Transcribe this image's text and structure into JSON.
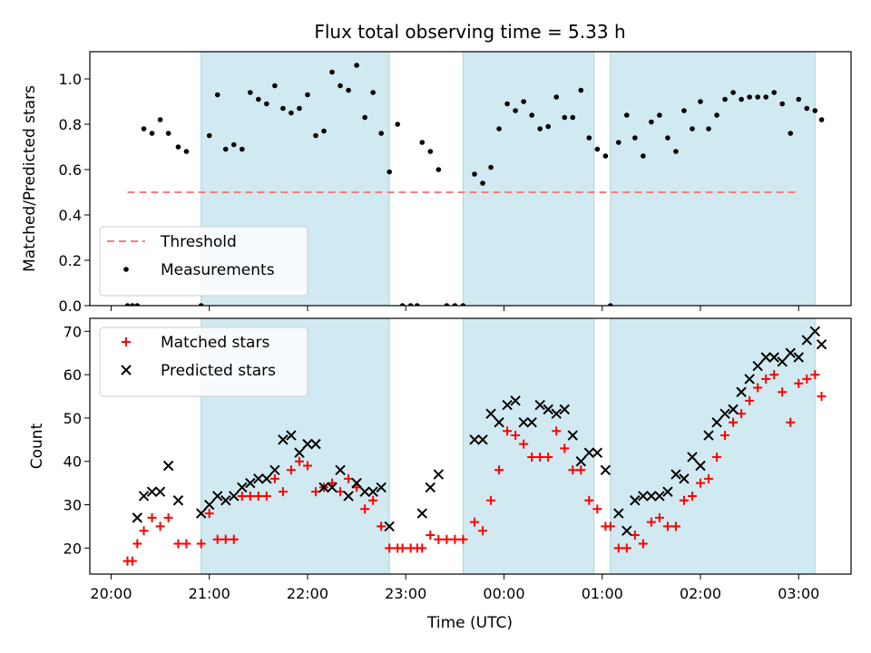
{
  "chart_data": [
    {
      "type": "scatter",
      "title": "Flux total observing time = 5.33 h",
      "xlabel": "",
      "ylabel": "Matched/Predicted stars",
      "ylim": [
        0,
        1.12
      ],
      "y_ticks": [
        "0.0",
        "0.2",
        "0.4",
        "0.6",
        "0.8",
        "1.0"
      ],
      "legend_placement": "lower-left",
      "threshold": {
        "name": "Threshold",
        "value": 0.5,
        "x_start": "20:10",
        "x_end": "03:00",
        "color": "#f08080"
      },
      "series": [
        {
          "name": "Measurements",
          "color": "#000000",
          "points": [
            [
              "20:10",
              0.0
            ],
            [
              "20:13",
              0.0
            ],
            [
              "20:16",
              0.0
            ],
            [
              "20:20",
              0.78
            ],
            [
              "20:25",
              0.76
            ],
            [
              "20:30",
              0.82
            ],
            [
              "20:35",
              0.76
            ],
            [
              "20:41",
              0.7
            ],
            [
              "20:46",
              0.68
            ],
            [
              "20:55",
              0.0
            ],
            [
              "21:00",
              0.75
            ],
            [
              "21:05",
              0.93
            ],
            [
              "21:10",
              0.69
            ],
            [
              "21:15",
              0.71
            ],
            [
              "21:20",
              0.69
            ],
            [
              "21:25",
              0.94
            ],
            [
              "21:30",
              0.91
            ],
            [
              "21:35",
              0.89
            ],
            [
              "21:40",
              0.97
            ],
            [
              "21:45",
              0.87
            ],
            [
              "21:50",
              0.85
            ],
            [
              "21:55",
              0.87
            ],
            [
              "22:00",
              0.93
            ],
            [
              "22:05",
              0.75
            ],
            [
              "22:10",
              0.77
            ],
            [
              "22:15",
              1.03
            ],
            [
              "22:20",
              0.97
            ],
            [
              "22:25",
              0.95
            ],
            [
              "22:30",
              1.06
            ],
            [
              "22:35",
              0.83
            ],
            [
              "22:40",
              0.94
            ],
            [
              "22:45",
              0.76
            ],
            [
              "22:50",
              0.59
            ],
            [
              "22:55",
              0.8
            ],
            [
              "22:58",
              0.0
            ],
            [
              "23:03",
              0.0
            ],
            [
              "23:07",
              0.0
            ],
            [
              "23:10",
              0.72
            ],
            [
              "23:15",
              0.68
            ],
            [
              "23:20",
              0.6
            ],
            [
              "23:25",
              0.0
            ],
            [
              "23:30",
              0.0
            ],
            [
              "23:35",
              0.0
            ],
            [
              "23:42",
              0.58
            ],
            [
              "23:47",
              0.54
            ],
            [
              "23:52",
              0.61
            ],
            [
              "23:57",
              0.78
            ],
            [
              "00:02",
              0.89
            ],
            [
              "00:07",
              0.86
            ],
            [
              "00:12",
              0.9
            ],
            [
              "00:17",
              0.84
            ],
            [
              "00:22",
              0.78
            ],
            [
              "00:27",
              0.79
            ],
            [
              "00:32",
              0.92
            ],
            [
              "00:37",
              0.83
            ],
            [
              "00:42",
              0.83
            ],
            [
              "00:47",
              0.95
            ],
            [
              "00:52",
              0.74
            ],
            [
              "00:57",
              0.69
            ],
            [
              "01:02",
              0.66
            ],
            [
              "01:05",
              0.0
            ],
            [
              "01:10",
              0.72
            ],
            [
              "01:15",
              0.84
            ],
            [
              "01:20",
              0.74
            ],
            [
              "01:25",
              0.66
            ],
            [
              "01:30",
              0.81
            ],
            [
              "01:35",
              0.84
            ],
            [
              "01:40",
              0.74
            ],
            [
              "01:45",
              0.68
            ],
            [
              "01:50",
              0.86
            ],
            [
              "01:55",
              0.78
            ],
            [
              "02:00",
              0.9
            ],
            [
              "02:05",
              0.78
            ],
            [
              "02:10",
              0.84
            ],
            [
              "02:15",
              0.91
            ],
            [
              "02:20",
              0.94
            ],
            [
              "02:25",
              0.91
            ],
            [
              "02:30",
              0.92
            ],
            [
              "02:35",
              0.92
            ],
            [
              "02:40",
              0.92
            ],
            [
              "02:45",
              0.94
            ],
            [
              "02:50",
              0.89
            ],
            [
              "02:55",
              0.76
            ],
            [
              "03:00",
              0.91
            ],
            [
              "03:05",
              0.87
            ],
            [
              "03:10",
              0.86
            ],
            [
              "03:14",
              0.82
            ]
          ]
        }
      ]
    },
    {
      "type": "scatter",
      "title": "",
      "xlabel": "Time (UTC)",
      "ylabel": "Count",
      "ylim": [
        14,
        73
      ],
      "y_ticks": [
        "20",
        "30",
        "40",
        "50",
        "60",
        "70"
      ],
      "legend_placement": "top-left",
      "series": [
        {
          "name": "Matched stars",
          "color": "#ff0000",
          "marker": "plus",
          "points": [
            [
              "20:10",
              17
            ],
            [
              "20:13",
              17
            ],
            [
              "20:16",
              21
            ],
            [
              "20:20",
              24
            ],
            [
              "20:25",
              27
            ],
            [
              "20:30",
              25
            ],
            [
              "20:35",
              27
            ],
            [
              "20:41",
              21
            ],
            [
              "20:46",
              21
            ],
            [
              "20:55",
              21
            ],
            [
              "21:00",
              28
            ],
            [
              "21:05",
              22
            ],
            [
              "21:10",
              22
            ],
            [
              "21:15",
              22
            ],
            [
              "21:20",
              32
            ],
            [
              "21:25",
              32
            ],
            [
              "21:30",
              32
            ],
            [
              "21:35",
              32
            ],
            [
              "21:40",
              36
            ],
            [
              "21:45",
              33
            ],
            [
              "21:50",
              38
            ],
            [
              "21:55",
              40
            ],
            [
              "22:00",
              39
            ],
            [
              "22:05",
              33
            ],
            [
              "22:10",
              34
            ],
            [
              "22:15",
              35
            ],
            [
              "22:20",
              33
            ],
            [
              "22:25",
              36
            ],
            [
              "22:30",
              34
            ],
            [
              "22:35",
              29
            ],
            [
              "22:40",
              31
            ],
            [
              "22:45",
              25
            ],
            [
              "22:50",
              20
            ],
            [
              "22:55",
              20
            ],
            [
              "22:58",
              20
            ],
            [
              "23:03",
              20
            ],
            [
              "23:07",
              20
            ],
            [
              "23:10",
              20
            ],
            [
              "23:15",
              23
            ],
            [
              "23:20",
              22
            ],
            [
              "23:25",
              22
            ],
            [
              "23:30",
              22
            ],
            [
              "23:35",
              22
            ],
            [
              "23:42",
              26
            ],
            [
              "23:47",
              24
            ],
            [
              "23:52",
              31
            ],
            [
              "23:57",
              38
            ],
            [
              "00:02",
              47
            ],
            [
              "00:07",
              46
            ],
            [
              "00:12",
              44
            ],
            [
              "00:17",
              41
            ],
            [
              "00:22",
              41
            ],
            [
              "00:27",
              41
            ],
            [
              "00:32",
              47
            ],
            [
              "00:37",
              43
            ],
            [
              "00:42",
              38
            ],
            [
              "00:47",
              38
            ],
            [
              "00:52",
              31
            ],
            [
              "00:57",
              29
            ],
            [
              "01:02",
              25
            ],
            [
              "01:05",
              25
            ],
            [
              "01:10",
              20
            ],
            [
              "01:15",
              20
            ],
            [
              "01:20",
              23
            ],
            [
              "01:25",
              21
            ],
            [
              "01:30",
              26
            ],
            [
              "01:35",
              27
            ],
            [
              "01:40",
              25
            ],
            [
              "01:45",
              25
            ],
            [
              "01:50",
              31
            ],
            [
              "01:55",
              32
            ],
            [
              "02:00",
              35
            ],
            [
              "02:05",
              36
            ],
            [
              "02:10",
              41
            ],
            [
              "02:15",
              46
            ],
            [
              "02:20",
              49
            ],
            [
              "02:25",
              51
            ],
            [
              "02:30",
              54
            ],
            [
              "02:35",
              57
            ],
            [
              "02:40",
              59
            ],
            [
              "02:45",
              60
            ],
            [
              "02:50",
              56
            ],
            [
              "02:55",
              49
            ],
            [
              "03:00",
              58
            ],
            [
              "03:05",
              59
            ],
            [
              "03:10",
              60
            ],
            [
              "03:14",
              55
            ]
          ]
        },
        {
          "name": "Predicted stars",
          "color": "#000000",
          "marker": "x",
          "points": [
            [
              "20:16",
              27
            ],
            [
              "20:20",
              32
            ],
            [
              "20:25",
              33
            ],
            [
              "20:30",
              33
            ],
            [
              "20:35",
              39
            ],
            [
              "20:41",
              31
            ],
            [
              "20:55",
              28
            ],
            [
              "21:00",
              30
            ],
            [
              "21:05",
              32
            ],
            [
              "21:10",
              31
            ],
            [
              "21:15",
              32
            ],
            [
              "21:20",
              34
            ],
            [
              "21:25",
              35
            ],
            [
              "21:30",
              36
            ],
            [
              "21:35",
              36
            ],
            [
              "21:40",
              38
            ],
            [
              "21:45",
              45
            ],
            [
              "21:50",
              46
            ],
            [
              "21:55",
              42
            ],
            [
              "22:00",
              44
            ],
            [
              "22:05",
              44
            ],
            [
              "22:10",
              34
            ],
            [
              "22:15",
              34
            ],
            [
              "22:20",
              38
            ],
            [
              "22:25",
              32
            ],
            [
              "22:30",
              35
            ],
            [
              "22:35",
              33
            ],
            [
              "22:40",
              33
            ],
            [
              "22:45",
              34
            ],
            [
              "22:50",
              25
            ],
            [
              "23:10",
              28
            ],
            [
              "23:15",
              34
            ],
            [
              "23:20",
              37
            ],
            [
              "23:42",
              45
            ],
            [
              "23:47",
              45
            ],
            [
              "23:52",
              51
            ],
            [
              "23:57",
              49
            ],
            [
              "00:02",
              53
            ],
            [
              "00:07",
              54
            ],
            [
              "00:12",
              49
            ],
            [
              "00:17",
              49
            ],
            [
              "00:22",
              53
            ],
            [
              "00:27",
              52
            ],
            [
              "00:32",
              51
            ],
            [
              "00:37",
              52
            ],
            [
              "00:42",
              46
            ],
            [
              "00:47",
              40
            ],
            [
              "00:52",
              42
            ],
            [
              "00:57",
              42
            ],
            [
              "01:02",
              38
            ],
            [
              "01:10",
              28
            ],
            [
              "01:15",
              24
            ],
            [
              "01:20",
              31
            ],
            [
              "01:25",
              32
            ],
            [
              "01:30",
              32
            ],
            [
              "01:35",
              32
            ],
            [
              "01:40",
              33
            ],
            [
              "01:45",
              37
            ],
            [
              "01:50",
              36
            ],
            [
              "01:55",
              41
            ],
            [
              "02:00",
              39
            ],
            [
              "02:05",
              46
            ],
            [
              "02:10",
              49
            ],
            [
              "02:15",
              51
            ],
            [
              "02:20",
              52
            ],
            [
              "02:25",
              56
            ],
            [
              "02:30",
              59
            ],
            [
              "02:35",
              62
            ],
            [
              "02:40",
              64
            ],
            [
              "02:45",
              64
            ],
            [
              "02:50",
              63
            ],
            [
              "02:55",
              65
            ],
            [
              "03:00",
              64
            ],
            [
              "03:05",
              68
            ],
            [
              "03:10",
              70
            ],
            [
              "03:14",
              67
            ]
          ]
        }
      ]
    }
  ],
  "shared_x": {
    "start": "19:47",
    "end": "03:32",
    "ticks": [
      "20:00",
      "21:00",
      "22:00",
      "23:00",
      "00:00",
      "01:00",
      "02:00",
      "03:00"
    ]
  },
  "observing_windows": [
    [
      "20:55",
      "22:50"
    ],
    [
      "23:35",
      "00:55"
    ],
    [
      "01:05",
      "03:10"
    ]
  ],
  "colors": {
    "window": "#d1e9f0",
    "window_edge": "#a8d6df"
  }
}
